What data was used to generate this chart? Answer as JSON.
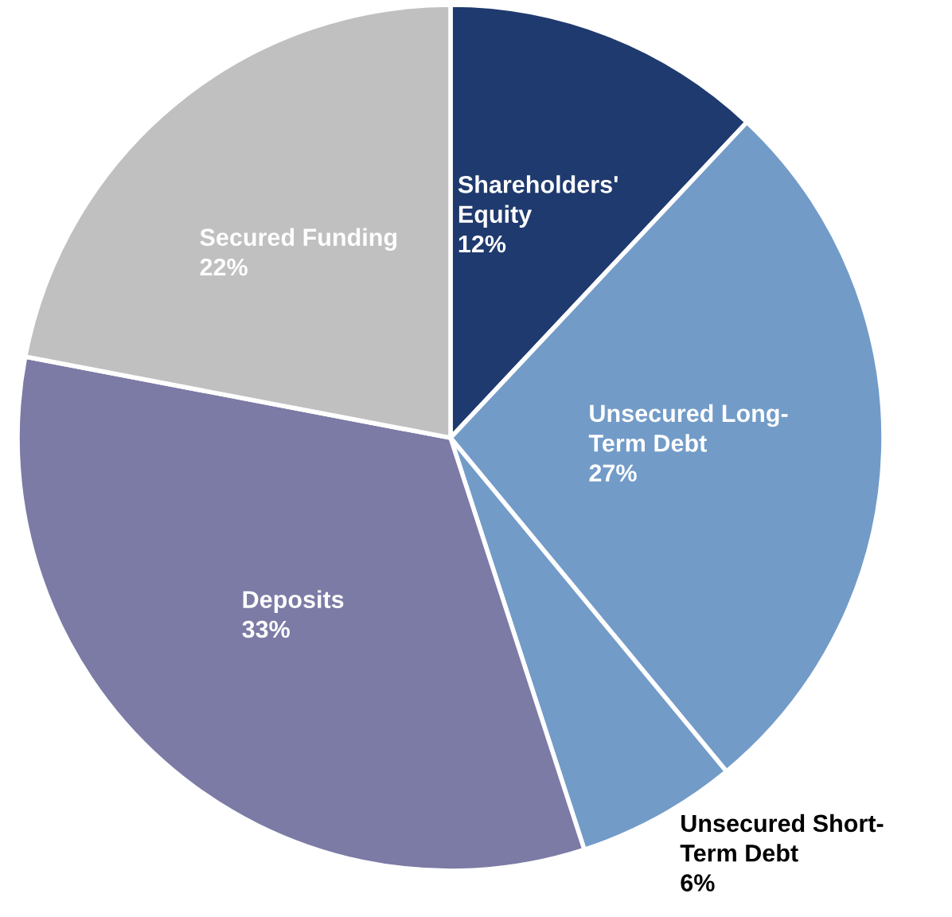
{
  "chart_data": {
    "type": "pie",
    "categories": [
      "Shareholders'\nEquity",
      "Unsecured Long-\nTerm Debt",
      "Unsecured Short-\nTerm Debt",
      "Deposits",
      "Secured Funding"
    ],
    "values": [
      12,
      27,
      6,
      33,
      22
    ],
    "colors": [
      "#1f3a6e",
      "#729bc8",
      "#729bc8",
      "#7c7ba6",
      "#c0c0c0"
    ],
    "value_labels": [
      "12%",
      "27%",
      "6%",
      "33%",
      "22%"
    ]
  }
}
